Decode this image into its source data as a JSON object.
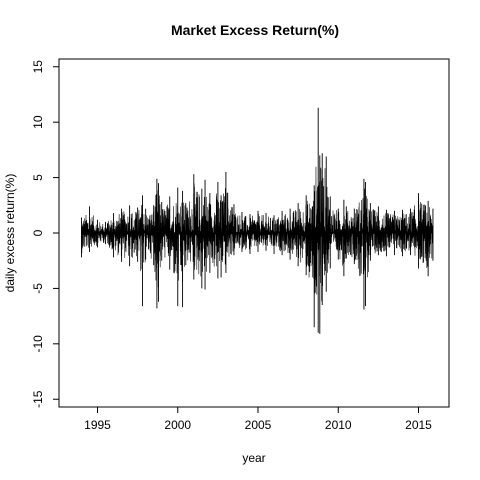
{
  "chart_data": {
    "type": "line",
    "title": "Market Excess Return(%)",
    "xlabel": "year",
    "ylabel": "daily excess return(%)",
    "xlim": [
      1992.6,
      2016.9
    ],
    "ylim": [
      -15.7,
      15.7
    ],
    "x_ticks": [
      1995,
      2000,
      2005,
      2010,
      2015
    ],
    "y_ticks": [
      -15,
      -10,
      -5,
      0,
      5,
      10,
      15
    ],
    "grid": false,
    "legend": "none",
    "line_color": "#000000",
    "series": [
      {
        "x": [
          1994.0,
          1994.5,
          1995.0,
          1995.5,
          1996.0,
          1996.5,
          1997.0,
          1997.5,
          1997.8,
          1998.0,
          1998.5,
          1998.7,
          1998.8,
          1999.0,
          1999.5,
          2000.0,
          2000.3,
          2000.5,
          2001.0,
          2001.5,
          2001.7,
          2002.0,
          2002.5,
          2002.7,
          2003.0,
          2003.5,
          2004.0,
          2004.5,
          2005.0,
          2005.5,
          2006.0,
          2006.5,
          2007.0,
          2007.5,
          2008.0,
          2008.5,
          2008.75,
          2008.85,
          2009.0,
          2009.25,
          2009.5,
          2010.0,
          2010.35,
          2010.5,
          2011.0,
          2011.6,
          2011.7,
          2012.0,
          2012.5,
          2013.0,
          2013.5,
          2014.0,
          2014.5,
          2015.0,
          2015.6,
          2015.9
        ],
        "high": [
          1.4,
          2.4,
          1.2,
          1.0,
          1.8,
          2.2,
          2.5,
          2.3,
          3.4,
          2.2,
          2.5,
          4.9,
          4.5,
          2.8,
          3.3,
          4.1,
          3.8,
          2.7,
          5.3,
          4.0,
          4.8,
          3.6,
          4.6,
          3.4,
          5.5,
          2.6,
          1.9,
          1.7,
          2.0,
          1.8,
          1.6,
          2.0,
          2.2,
          2.7,
          3.4,
          4.3,
          11.3,
          7.0,
          7.2,
          6.9,
          3.3,
          2.2,
          3.0,
          2.4,
          2.2,
          4.9,
          4.6,
          2.7,
          2.4,
          2.1,
          2.0,
          2.1,
          2.2,
          3.6,
          2.9,
          2.2
        ],
        "low": [
          -2.2,
          -1.7,
          -1.3,
          -1.0,
          -2.2,
          -2.6,
          -3.0,
          -2.6,
          -6.6,
          -2.4,
          -2.9,
          -6.8,
          -6.2,
          -2.5,
          -3.3,
          -6.6,
          -6.7,
          -2.9,
          -4.2,
          -5.0,
          -5.1,
          -3.6,
          -4.1,
          -4.0,
          -3.6,
          -2.0,
          -1.7,
          -1.9,
          -1.7,
          -1.6,
          -1.9,
          -2.0,
          -2.4,
          -3.0,
          -3.8,
          -8.5,
          -9.0,
          -9.1,
          -6.5,
          -5.3,
          -3.2,
          -2.4,
          -3.9,
          -2.3,
          -2.8,
          -6.9,
          -6.6,
          -2.5,
          -2.0,
          -2.1,
          -2.0,
          -2.1,
          -2.0,
          -3.2,
          -3.9,
          -2.5
        ]
      }
    ]
  }
}
